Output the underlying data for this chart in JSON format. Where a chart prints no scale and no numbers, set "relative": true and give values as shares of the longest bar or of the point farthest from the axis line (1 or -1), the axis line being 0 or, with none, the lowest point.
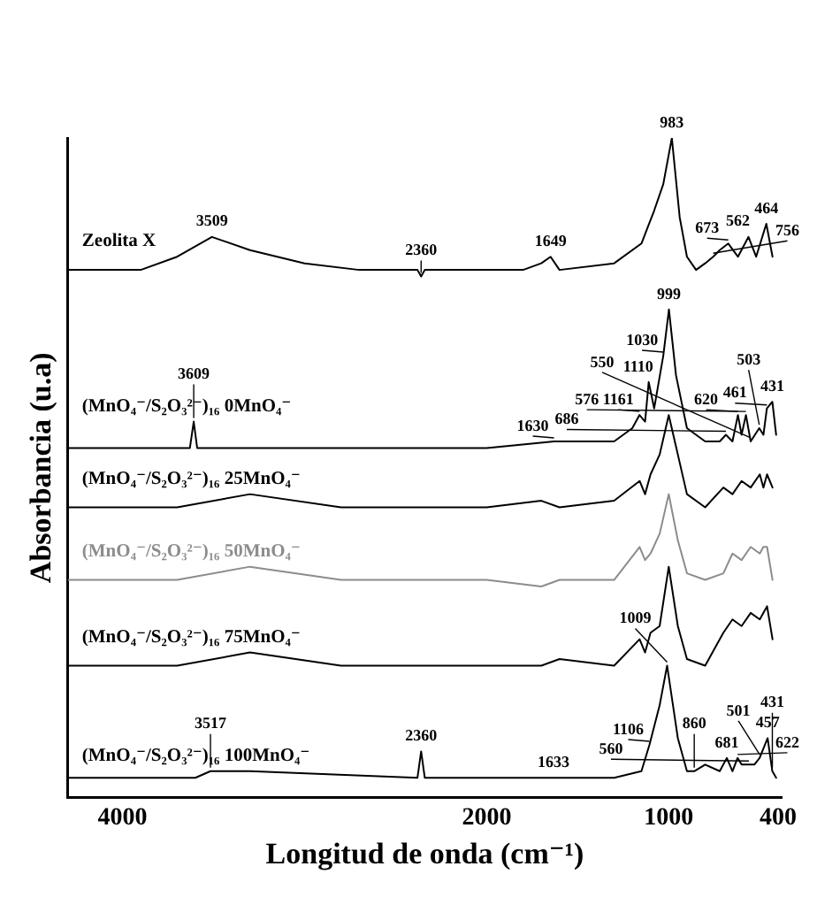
{
  "chart_data": {
    "type": "line",
    "relative": true,
    "xlabel": "Longitud de onda (cm⁻¹)",
    "ylabel": "Absorbancia (u.a)",
    "xlim": [
      4300,
      380
    ],
    "xticks": [
      4000,
      2000,
      1000,
      400
    ],
    "grid": false,
    "legend": false,
    "marker": "none",
    "series": [
      {
        "name": "Zeolita X",
        "color": "#000000",
        "x": [
          4300,
          3900,
          3700,
          3509,
          3300,
          3000,
          2700,
          2380,
          2360,
          2340,
          2000,
          1800,
          1700,
          1649,
          1600,
          1300,
          1150,
          1080,
          1030,
          983,
          940,
          900,
          850,
          800,
          756,
          720,
          673,
          620,
          562,
          520,
          464,
          430
        ],
        "values": [
          0.8,
          0.8,
          0.82,
          0.85,
          0.83,
          0.81,
          0.8,
          0.8,
          0.79,
          0.8,
          0.8,
          0.8,
          0.81,
          0.82,
          0.8,
          0.81,
          0.84,
          0.89,
          0.93,
          1.0,
          0.88,
          0.82,
          0.8,
          0.81,
          0.82,
          0.83,
          0.84,
          0.82,
          0.85,
          0.82,
          0.87,
          0.82
        ]
      },
      {
        "name": "(MnO₄⁻/S₂O₃²⁻)₁₆ 0MnO₄⁻",
        "color": "#000000",
        "x": [
          4300,
          3700,
          3630,
          3609,
          3590,
          3000,
          2000,
          1630,
          1300,
          1200,
          1161,
          1130,
          1110,
          1080,
          1030,
          999,
          960,
          900,
          800,
          720,
          686,
          650,
          620,
          600,
          576,
          550,
          503,
          480,
          461,
          431,
          410
        ],
        "values": [
          0.53,
          0.53,
          0.53,
          0.57,
          0.53,
          0.53,
          0.53,
          0.54,
          0.54,
          0.56,
          0.58,
          0.57,
          0.63,
          0.59,
          0.67,
          0.74,
          0.64,
          0.56,
          0.54,
          0.54,
          0.55,
          0.54,
          0.58,
          0.55,
          0.58,
          0.54,
          0.56,
          0.55,
          0.59,
          0.6,
          0.55
        ]
      },
      {
        "name": "(MnO₄⁻/S₂O₃²⁻)₁₆ 25MnO₄⁻",
        "color": "#000000",
        "x": [
          4300,
          3700,
          3300,
          2800,
          2000,
          1700,
          1600,
          1300,
          1160,
          1130,
          1100,
          1050,
          1000,
          950,
          900,
          800,
          700,
          650,
          600,
          550,
          500,
          480,
          460,
          430
        ],
        "values": [
          0.44,
          0.44,
          0.46,
          0.44,
          0.44,
          0.45,
          0.44,
          0.45,
          0.48,
          0.46,
          0.49,
          0.52,
          0.58,
          0.52,
          0.46,
          0.44,
          0.47,
          0.46,
          0.48,
          0.47,
          0.49,
          0.47,
          0.49,
          0.47
        ]
      },
      {
        "name": "(MnO₄⁻/S₂O₃²⁻)₁₆ 50MnO₄⁻",
        "color": "#8c8c8c",
        "x": [
          4300,
          3700,
          3300,
          2800,
          2000,
          1700,
          1600,
          1300,
          1160,
          1130,
          1100,
          1050,
          1000,
          950,
          900,
          800,
          700,
          650,
          600,
          550,
          500,
          480,
          460,
          430
        ],
        "values": [
          0.33,
          0.33,
          0.35,
          0.33,
          0.33,
          0.32,
          0.33,
          0.33,
          0.38,
          0.36,
          0.37,
          0.4,
          0.46,
          0.39,
          0.34,
          0.33,
          0.34,
          0.37,
          0.36,
          0.38,
          0.37,
          0.38,
          0.38,
          0.33
        ]
      },
      {
        "name": "(MnO₄⁻/S₂O₃²⁻)₁₆ 75MnO₄⁻",
        "color": "#000000",
        "x": [
          4300,
          3700,
          3300,
          2800,
          2000,
          1700,
          1600,
          1300,
          1160,
          1130,
          1100,
          1050,
          1000,
          950,
          900,
          800,
          700,
          650,
          600,
          550,
          500,
          480,
          460,
          430
        ],
        "values": [
          0.2,
          0.2,
          0.22,
          0.2,
          0.2,
          0.2,
          0.21,
          0.2,
          0.24,
          0.22,
          0.25,
          0.26,
          0.35,
          0.26,
          0.21,
          0.2,
          0.25,
          0.27,
          0.26,
          0.28,
          0.27,
          0.28,
          0.29,
          0.24
        ]
      },
      {
        "name": "(MnO₄⁻/S₂O₃²⁻)₁₆ 100MnO₄⁻",
        "color": "#000000",
        "x": [
          4300,
          3600,
          3517,
          3300,
          2380,
          2360,
          2340,
          1800,
          1633,
          1300,
          1150,
          1106,
          1050,
          1009,
          950,
          900,
          860,
          800,
          720,
          681,
          650,
          622,
          600,
          560,
          530,
          501,
          457,
          431,
          410
        ],
        "values": [
          0.03,
          0.03,
          0.04,
          0.04,
          0.03,
          0.07,
          0.03,
          0.03,
          0.03,
          0.03,
          0.04,
          0.08,
          0.14,
          0.2,
          0.09,
          0.04,
          0.04,
          0.05,
          0.04,
          0.06,
          0.04,
          0.06,
          0.05,
          0.05,
          0.05,
          0.06,
          0.09,
          0.04,
          0.03
        ]
      }
    ],
    "annotations": [
      {
        "text": "3509",
        "x": 3509,
        "y": 0.85
      },
      {
        "text": "2360",
        "x": 2360,
        "y": 0.79
      },
      {
        "text": "1649",
        "x": 1649,
        "y": 0.82
      },
      {
        "text": "983",
        "x": 983,
        "y": 1.0
      },
      {
        "text": "756",
        "x": 756,
        "y": 0.82
      },
      {
        "text": "673",
        "x": 673,
        "y": 0.84
      },
      {
        "text": "562",
        "x": 562,
        "y": 0.85
      },
      {
        "text": "464",
        "x": 464,
        "y": 0.87
      },
      {
        "text": "3609",
        "x": 3609,
        "y": 0.57
      },
      {
        "text": "1630",
        "x": 1630,
        "y": 0.54
      },
      {
        "text": "1161",
        "x": 1161,
        "y": 0.58
      },
      {
        "text": "1110",
        "x": 1110,
        "y": 0.63
      },
      {
        "text": "1030",
        "x": 1030,
        "y": 0.67
      },
      {
        "text": "999",
        "x": 999,
        "y": 0.74
      },
      {
        "text": "686",
        "x": 686,
        "y": 0.55
      },
      {
        "text": "620",
        "x": 620,
        "y": 0.58
      },
      {
        "text": "576",
        "x": 576,
        "y": 0.58
      },
      {
        "text": "550",
        "x": 550,
        "y": 0.54
      },
      {
        "text": "503",
        "x": 503,
        "y": 0.56
      },
      {
        "text": "461",
        "x": 461,
        "y": 0.59
      },
      {
        "text": "431",
        "x": 431,
        "y": 0.6
      },
      {
        "text": "3517",
        "x": 3517,
        "y": 0.04
      },
      {
        "text": "2360",
        "x": 2360,
        "y": 0.07
      },
      {
        "text": "1633",
        "x": 1633,
        "y": 0.03
      },
      {
        "text": "1106",
        "x": 1106,
        "y": 0.08
      },
      {
        "text": "1009",
        "x": 1009,
        "y": 0.2
      },
      {
        "text": "860",
        "x": 860,
        "y": 0.04
      },
      {
        "text": "681",
        "x": 681,
        "y": 0.06
      },
      {
        "text": "622",
        "x": 622,
        "y": 0.06
      },
      {
        "text": "560",
        "x": 560,
        "y": 0.05
      },
      {
        "text": "501",
        "x": 501,
        "y": 0.06
      },
      {
        "text": "457",
        "x": 457,
        "y": 0.09
      },
      {
        "text": "431",
        "x": 431,
        "y": 0.04
      }
    ]
  }
}
